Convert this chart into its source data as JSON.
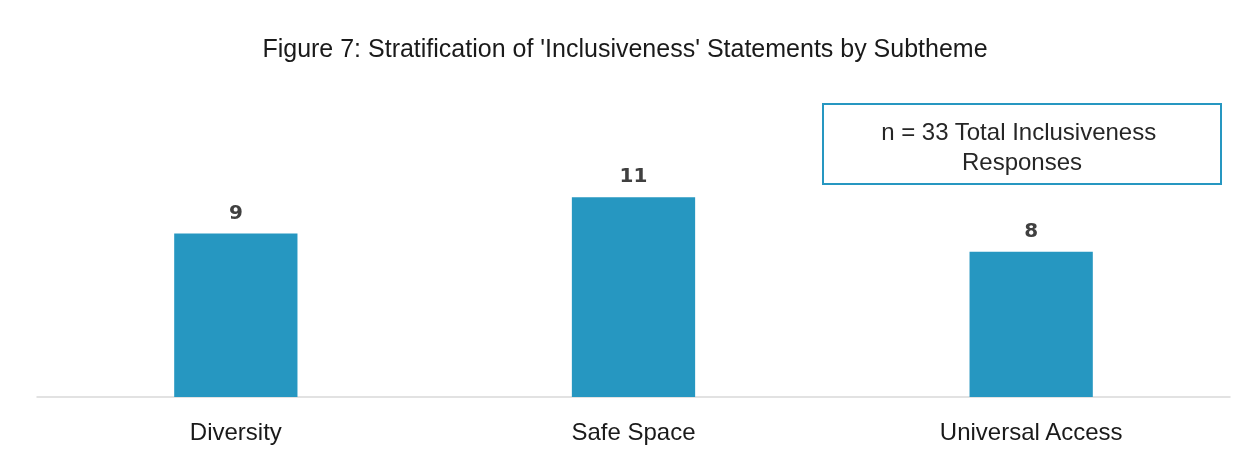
{
  "chart_data": {
    "type": "bar",
    "title": "Figure 7: Stratification of 'Inclusiveness' Statements by Subtheme",
    "categories": [
      "Diversity",
      "Safe Space",
      "Universal Access"
    ],
    "values": [
      9,
      11,
      8
    ],
    "color": "#2697c1",
    "data_labels": true,
    "annotations": [
      "n = 33 Total Inclusiveness Responses"
    ]
  }
}
